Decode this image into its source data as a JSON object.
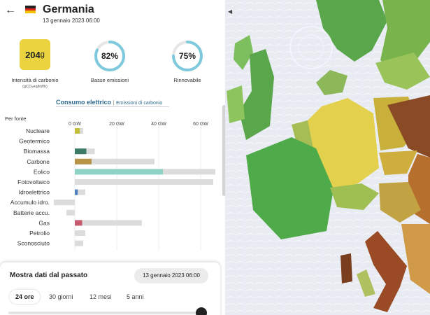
{
  "header": {
    "country": "Germania",
    "datetime": "13 gennaio 2023 06:00"
  },
  "metrics": {
    "carbon_intensity": {
      "value": "204",
      "unit": "g",
      "label": "Intensità di carbonio",
      "unit_label": "(gCO₂eq/kWh)",
      "color": "#ead33e"
    },
    "low_emissions": {
      "value": "82%",
      "fraction": 0.82,
      "label": "Basse emissioni",
      "color": "#7ec9dc"
    },
    "renewable": {
      "value": "75%",
      "fraction": 0.75,
      "label": "Rinnovabile",
      "color": "#7ec9dc"
    }
  },
  "tabs": {
    "active": "Consumo elettrico",
    "separator": "|",
    "other": "Emissioni di carbonio"
  },
  "chart_data": {
    "type": "bar",
    "title": "",
    "xlabel": "Per fonte",
    "xlim": [
      -10,
      70
    ],
    "ticks": [
      "0 GW",
      "20 GW",
      "40 GW",
      "60 GW"
    ],
    "tick_values": [
      0,
      20,
      40,
      60
    ],
    "categories": [
      "Nucleare",
      "Geotermico",
      "Biomassa",
      "Carbone",
      "Eolico",
      "Fotovoltaico",
      "Idroelettrico",
      "Accumulo idro.",
      "Batterie accu.",
      "Gas",
      "Petrolio",
      "Sconosciuto"
    ],
    "series": [
      {
        "values": [
          2.4,
          0,
          5.5,
          8,
          42,
          0,
          1.4,
          0,
          0,
          3.5,
          0,
          0
        ]
      },
      {
        "values": [
          4,
          0,
          9.5,
          38,
          67,
          66,
          5,
          -10,
          -4,
          32,
          5,
          4
        ]
      }
    ],
    "colors": [
      "#c4bf3a",
      "#aaaaaa",
      "#3b7a66",
      "#b8944a",
      "#8dd2c5",
      "#dddddd",
      "#4d7fc4",
      "#dddddd",
      "#dddddd",
      "#c85a70",
      "#dddddd",
      "#dddddd"
    ],
    "capacity_color": "#dcdcdc"
  },
  "history": {
    "title": "Mostra dati dal passato",
    "date": "13 gennaio 2023 06:00",
    "ranges": [
      "24 ore",
      "30 giorni",
      "12 mesi",
      "5 anni"
    ],
    "active_range": 0
  }
}
